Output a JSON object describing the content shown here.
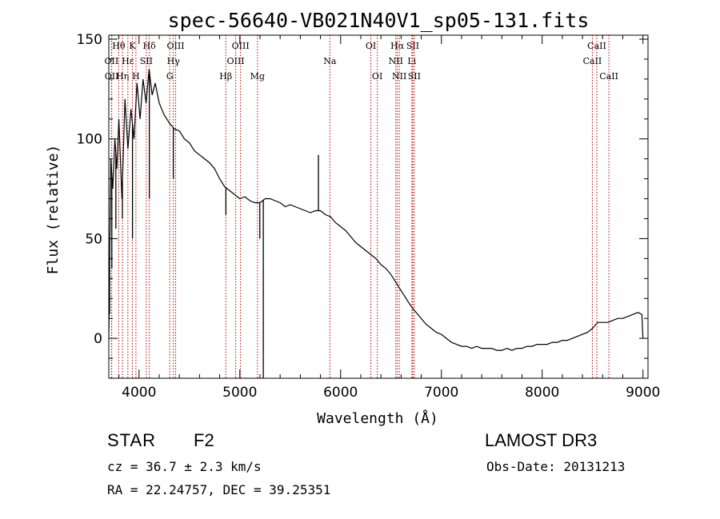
{
  "chart_data": {
    "type": "line",
    "title": "spec-56640-VB021N40V1_sp05-131.fits",
    "xlabel": "Wavelength (Å)",
    "ylabel": "Flux (relative)",
    "xlim": [
      3700,
      9050
    ],
    "ylim": [
      -20,
      152
    ],
    "xticks": [
      4000,
      5000,
      6000,
      7000,
      8000,
      9000
    ],
    "yticks": [
      0,
      50,
      100,
      150
    ],
    "grid": false,
    "series": [
      {
        "name": "flux",
        "color": "#000000",
        "x": [
          3700,
          3720,
          3740,
          3760,
          3780,
          3800,
          3830,
          3860,
          3890,
          3920,
          3950,
          3980,
          4010,
          4040,
          4070,
          4100,
          4130,
          4160,
          4200,
          4250,
          4300,
          4350,
          4400,
          4450,
          4500,
          4550,
          4600,
          4650,
          4700,
          4750,
          4800,
          4850,
          4900,
          4950,
          5000,
          5050,
          5100,
          5150,
          5200,
          5250,
          5300,
          5350,
          5400,
          5450,
          5500,
          5550,
          5600,
          5650,
          5700,
          5750,
          5800,
          5850,
          5900,
          5950,
          6000,
          6050,
          6100,
          6150,
          6200,
          6250,
          6300,
          6350,
          6400,
          6450,
          6500,
          6550,
          6600,
          6650,
          6700,
          6750,
          6800,
          6850,
          6900,
          6950,
          7000,
          7050,
          7100,
          7150,
          7200,
          7250,
          7300,
          7350,
          7400,
          7450,
          7500,
          7550,
          7600,
          7650,
          7700,
          7750,
          7800,
          7850,
          7900,
          7950,
          8000,
          8050,
          8100,
          8150,
          8200,
          8250,
          8300,
          8350,
          8400,
          8450,
          8500,
          8550,
          8600,
          8650,
          8700,
          8750,
          8800,
          8850,
          8900,
          8950,
          8990,
          9000
        ],
        "values": [
          0,
          90,
          75,
          100,
          85,
          110,
          70,
          120,
          95,
          115,
          100,
          128,
          110,
          130,
          118,
          135,
          122,
          128,
          118,
          112,
          108,
          105,
          104,
          100,
          98,
          94,
          92,
          90,
          88,
          85,
          80,
          76,
          74,
          72,
          70,
          71,
          69,
          68,
          68,
          70,
          70,
          69,
          68,
          66,
          67,
          66,
          65,
          64,
          63,
          64,
          64,
          62,
          61,
          58,
          56,
          54,
          51,
          48,
          46,
          44,
          42,
          40,
          37,
          35,
          32,
          28,
          24,
          20,
          16,
          13,
          10,
          7,
          5,
          3,
          2,
          0,
          -2,
          -3,
          -4,
          -4,
          -5,
          -4,
          -5,
          -5,
          -5,
          -6,
          -6,
          -5,
          -6,
          -5,
          -5,
          -4,
          -4,
          -3,
          -3,
          -3,
          -2,
          -2,
          -1,
          -1,
          0,
          1,
          2,
          3,
          5,
          8,
          8,
          8,
          9,
          10,
          10,
          11,
          12,
          13,
          12,
          0
        ]
      },
      {
        "name": "spikes",
        "color": "#000000",
        "x": [
          3708,
          3730,
          3770,
          3835,
          3935,
          4102,
          4340,
          4862,
          5198,
          5233,
          5780
        ],
        "values": [
          12,
          35,
          55,
          60,
          50,
          70,
          80,
          62,
          50,
          -20,
          92
        ]
      }
    ],
    "lines": [
      {
        "name": "Hθ",
        "wavelength": 3798,
        "row": 1
      },
      {
        "name": "OII",
        "wavelength": 3727,
        "row": 2
      },
      {
        "name": "OII",
        "wavelength": 3729,
        "row": 3
      },
      {
        "name": "Hη",
        "wavelength": 3836,
        "row": 3
      },
      {
        "name": "Hε",
        "wavelength": 3889,
        "row": 2
      },
      {
        "name": "K",
        "wavelength": 3934,
        "row": 1
      },
      {
        "name": "H",
        "wavelength": 3969,
        "row": 3
      },
      {
        "name": "Hδ",
        "wavelength": 4102,
        "row": 1
      },
      {
        "name": "SII",
        "wavelength": 4072,
        "row": 2
      },
      {
        "name": "OIII",
        "wavelength": 4363,
        "row": 1
      },
      {
        "name": "Hγ",
        "wavelength": 4341,
        "row": 2
      },
      {
        "name": "G",
        "wavelength": 4305,
        "row": 3
      },
      {
        "name": "Hβ",
        "wavelength": 4861,
        "row": 3
      },
      {
        "name": "OIII",
        "wavelength": 5007,
        "row": 1
      },
      {
        "name": "OIII",
        "wavelength": 4959,
        "row": 2
      },
      {
        "name": "Mg",
        "wavelength": 5175,
        "row": 3
      },
      {
        "name": "Na",
        "wavelength": 5894,
        "row": 2
      },
      {
        "name": "OI",
        "wavelength": 6300,
        "row": 1
      },
      {
        "name": "OI",
        "wavelength": 6364,
        "row": 3
      },
      {
        "name": "Hα",
        "wavelength": 6563,
        "row": 1
      },
      {
        "name": "NII",
        "wavelength": 6548,
        "row": 2
      },
      {
        "name": "NII",
        "wavelength": 6583,
        "row": 3
      },
      {
        "name": "SII",
        "wavelength": 6716,
        "row": 1
      },
      {
        "name": "Li",
        "wavelength": 6707,
        "row": 2
      },
      {
        "name": "SII",
        "wavelength": 6731,
        "row": 3
      },
      {
        "name": "CaII",
        "wavelength": 8542,
        "row": 1
      },
      {
        "name": "CaII",
        "wavelength": 8498,
        "row": 2
      },
      {
        "name": "CaII",
        "wavelength": 8662,
        "row": 3
      }
    ],
    "line_color": "#c00000"
  },
  "footer": {
    "obj_class": "STAR",
    "obj_subclass": "F2",
    "survey": "LAMOST DR3",
    "cz": "cz = 36.7 ± 2.3 km/s",
    "obs_date": "Obs-Date: 20131213",
    "radec": "RA =  22.24757, DEC =  39.25351"
  }
}
